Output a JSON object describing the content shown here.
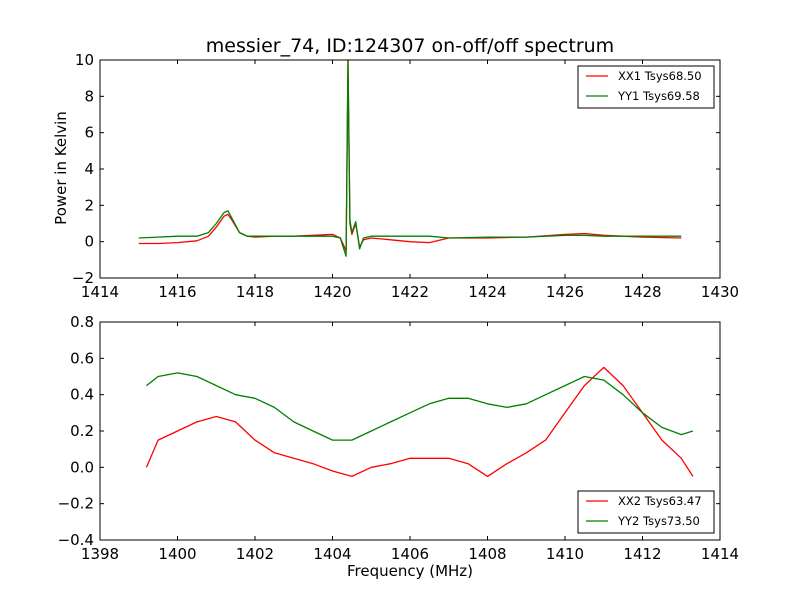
{
  "chart_data": [
    {
      "type": "line",
      "title": "messier_74, ID:124307 on-off/off spectrum",
      "xlabel": "",
      "ylabel": "Power in Kelvin",
      "xlim": [
        1414,
        1430
      ],
      "ylim": [
        -2,
        10
      ],
      "xticks": [
        1414,
        1416,
        1418,
        1420,
        1422,
        1424,
        1426,
        1428,
        1430
      ],
      "yticks": [
        -2,
        0,
        2,
        4,
        6,
        8,
        10
      ],
      "legend_position": "top-right",
      "series": [
        {
          "name": "XX1 Tsys68.50",
          "color": "#ff0000",
          "x": [
            1415.0,
            1415.5,
            1416.0,
            1416.5,
            1416.8,
            1417.0,
            1417.2,
            1417.3,
            1417.4,
            1417.6,
            1417.8,
            1418.0,
            1418.5,
            1419.0,
            1419.5,
            1420.0,
            1420.2,
            1420.35,
            1420.4,
            1420.45,
            1420.5,
            1420.6,
            1420.7,
            1420.8,
            1421.0,
            1421.5,
            1422.0,
            1422.5,
            1423.0,
            1424.0,
            1425.0,
            1426.0,
            1426.5,
            1427.0,
            1428.0,
            1429.0
          ],
          "values": [
            -0.1,
            -0.1,
            -0.05,
            0.05,
            0.3,
            0.8,
            1.4,
            1.5,
            1.2,
            0.5,
            0.3,
            0.25,
            0.3,
            0.3,
            0.35,
            0.4,
            0.2,
            -0.5,
            10.0,
            1.0,
            0.4,
            1.0,
            -0.3,
            0.1,
            0.2,
            0.1,
            0.0,
            -0.05,
            0.2,
            0.2,
            0.25,
            0.4,
            0.45,
            0.35,
            0.25,
            0.2
          ]
        },
        {
          "name": "YY1 Tsys69.58",
          "color": "#008000",
          "x": [
            1415.0,
            1415.5,
            1416.0,
            1416.5,
            1416.8,
            1417.0,
            1417.2,
            1417.3,
            1417.4,
            1417.6,
            1417.8,
            1418.0,
            1418.5,
            1419.0,
            1419.5,
            1420.0,
            1420.2,
            1420.35,
            1420.4,
            1420.45,
            1420.5,
            1420.6,
            1420.7,
            1420.8,
            1421.0,
            1421.5,
            1422.0,
            1422.5,
            1423.0,
            1424.0,
            1425.0,
            1426.0,
            1426.5,
            1427.0,
            1428.0,
            1429.0
          ],
          "values": [
            0.2,
            0.25,
            0.3,
            0.3,
            0.5,
            1.0,
            1.6,
            1.7,
            1.3,
            0.5,
            0.3,
            0.3,
            0.3,
            0.3,
            0.3,
            0.3,
            0.2,
            -0.8,
            10.0,
            1.2,
            0.5,
            1.1,
            -0.4,
            0.2,
            0.3,
            0.3,
            0.3,
            0.3,
            0.2,
            0.25,
            0.25,
            0.35,
            0.35,
            0.3,
            0.3,
            0.3
          ]
        }
      ]
    },
    {
      "type": "line",
      "title": "",
      "xlabel": "Frequency (MHz)",
      "ylabel": "",
      "xlim": [
        1398,
        1414
      ],
      "ylim": [
        -0.4,
        0.8
      ],
      "xticks": [
        1398,
        1400,
        1402,
        1404,
        1406,
        1408,
        1410,
        1412,
        1414
      ],
      "yticks": [
        -0.4,
        -0.2,
        0.0,
        0.2,
        0.4,
        0.6,
        0.8
      ],
      "legend_position": "bottom-right",
      "series": [
        {
          "name": "XX2 Tsys63.47",
          "color": "#ff0000",
          "x": [
            1399.2,
            1399.5,
            1400.0,
            1400.5,
            1401.0,
            1401.5,
            1402.0,
            1402.5,
            1403.0,
            1403.5,
            1404.0,
            1404.5,
            1405.0,
            1405.5,
            1406.0,
            1406.5,
            1407.0,
            1407.5,
            1408.0,
            1408.5,
            1409.0,
            1409.5,
            1410.0,
            1410.5,
            1411.0,
            1411.5,
            1412.0,
            1412.5,
            1413.0,
            1413.3
          ],
          "values": [
            0.0,
            0.15,
            0.2,
            0.25,
            0.28,
            0.25,
            0.15,
            0.08,
            0.05,
            0.02,
            -0.02,
            -0.05,
            0.0,
            0.02,
            0.05,
            0.05,
            0.05,
            0.02,
            -0.05,
            0.02,
            0.08,
            0.15,
            0.3,
            0.45,
            0.55,
            0.45,
            0.3,
            0.15,
            0.05,
            -0.05
          ]
        },
        {
          "name": "YY2 Tsys73.50",
          "color": "#008000",
          "x": [
            1399.2,
            1399.5,
            1400.0,
            1400.5,
            1401.0,
            1401.5,
            1402.0,
            1402.5,
            1403.0,
            1403.5,
            1404.0,
            1404.5,
            1405.0,
            1405.5,
            1406.0,
            1406.5,
            1407.0,
            1407.5,
            1408.0,
            1408.5,
            1409.0,
            1409.5,
            1410.0,
            1410.5,
            1411.0,
            1411.5,
            1412.0,
            1412.5,
            1413.0,
            1413.3
          ],
          "values": [
            0.45,
            0.5,
            0.52,
            0.5,
            0.45,
            0.4,
            0.38,
            0.33,
            0.25,
            0.2,
            0.15,
            0.15,
            0.2,
            0.25,
            0.3,
            0.35,
            0.38,
            0.38,
            0.35,
            0.33,
            0.35,
            0.4,
            0.45,
            0.5,
            0.48,
            0.4,
            0.3,
            0.22,
            0.18,
            0.2
          ]
        }
      ]
    }
  ]
}
